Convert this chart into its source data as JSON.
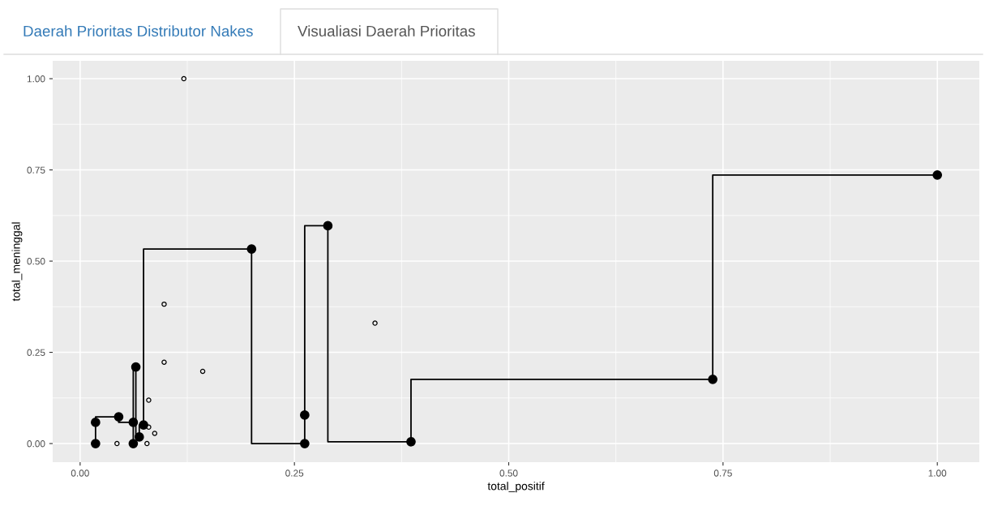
{
  "chart_data": {
    "type": "step",
    "xlabel": "total_positif",
    "ylabel": "total_meninggal",
    "annotations": [
      "Daerah Prioritas Distributor Nakes",
      "Visualiasi Daerah Prioritas"
    ],
    "series": [
      {
        "color": "#000000",
        "marker": "circle",
        "x": [
          0.018,
          0.018,
          0.045,
          0.062,
          0.062,
          0.065,
          0.069,
          0.074,
          0.2,
          0.262,
          0.262,
          0.289,
          0.386,
          0.738,
          1.0
        ],
        "values": [
          0.0,
          0.058,
          0.073,
          0.058,
          0.0,
          0.21,
          0.018,
          0.051,
          0.533,
          0.0,
          0.078,
          0.597,
          0.005,
          0.176,
          0.736
        ]
      },
      {
        "type": "scatter",
        "color": "#000000",
        "marker": "circle",
        "x": [
          0.121,
          0.098,
          0.098,
          0.143,
          0.344,
          0.08,
          0.08,
          0.087,
          0.043,
          0.078
        ],
        "values": [
          1.0,
          0.382,
          0.223,
          0.198,
          0.33,
          0.119,
          0.045,
          0.028,
          0.0,
          0.0
        ]
      }
    ],
    "xlim": [
      -0.032,
      1.049
    ],
    "ylim": [
      -0.051,
      1.049
    ],
    "xticks": [
      {
        "value": 0,
        "label": "0.00"
      },
      {
        "value": 0.25,
        "label": "0.25"
      },
      {
        "value": 0.5,
        "label": "0.50"
      },
      {
        "value": 0.75,
        "label": "0.75"
      },
      {
        "value": 1,
        "label": "1.00"
      }
    ],
    "yticks": [
      {
        "value": 0,
        "label": "0.00"
      },
      {
        "value": 0.25,
        "label": "0.25"
      },
      {
        "value": 0.5,
        "label": "0.50"
      },
      {
        "value": 0.75,
        "label": "0.75"
      },
      {
        "value": 1,
        "label": "1.00"
      }
    ],
    "grid": true
  }
}
